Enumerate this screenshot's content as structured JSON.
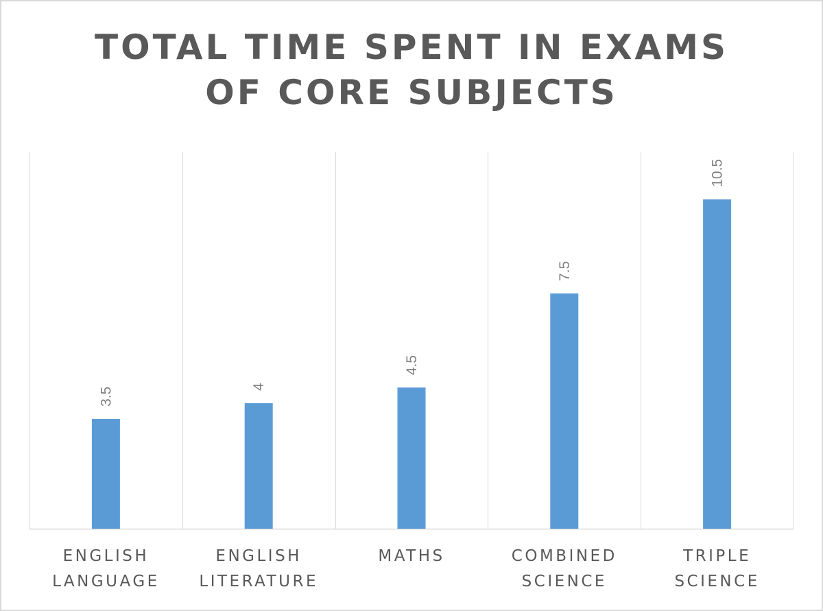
{
  "chart_data": {
    "type": "bar",
    "title_lines": [
      "TOTAL TIME SPENT IN EXAMS",
      "OF CORE SUBJECTS"
    ],
    "categories": [
      [
        "ENGLISH",
        "LANGUAGE"
      ],
      [
        "ENGLISH",
        "LITERATURE"
      ],
      [
        "MATHS"
      ],
      [
        "COMBINED",
        "SCIENCE"
      ],
      [
        "TRIPLE",
        "SCIENCE"
      ]
    ],
    "values": [
      3.5,
      4,
      4.5,
      7.5,
      10.5
    ],
    "value_labels": [
      "3.5",
      "4",
      "4.5",
      "7.5",
      "10.5"
    ],
    "xlabel": "",
    "ylabel": "",
    "ylim": [
      0,
      12
    ],
    "bar_color": "#5b9bd5",
    "grid": "vertical category separators",
    "legend": "none"
  }
}
